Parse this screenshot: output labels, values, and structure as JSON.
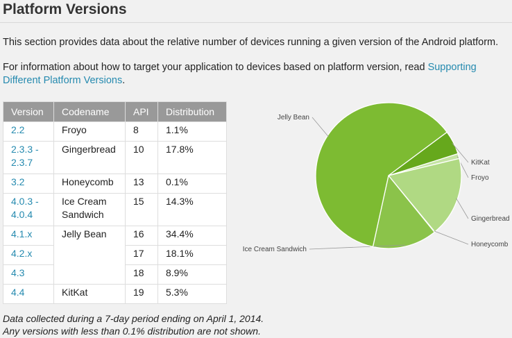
{
  "page": {
    "title": "Platform Versions",
    "intro": "This section provides data about the relative number of devices running a given version of the Android platform.",
    "info_prefix": "For information about how to target your application to devices based on platform version, read ",
    "info_link": "Supporting Different Platform Versions",
    "info_suffix": "."
  },
  "table": {
    "headers": [
      "Version",
      "Codename",
      "API",
      "Distribution"
    ],
    "rows": [
      {
        "version": "2.2",
        "codename": "Froyo",
        "api": "8",
        "distribution": "1.1%"
      },
      {
        "version": "2.3.3 - 2.3.7",
        "codename": "Gingerbread",
        "api": "10",
        "distribution": "17.8%"
      },
      {
        "version": "3.2",
        "codename": "Honeycomb",
        "api": "13",
        "distribution": "0.1%"
      },
      {
        "version": "4.0.3 - 4.0.4",
        "codename": "Ice Cream Sandwich",
        "api": "15",
        "distribution": "14.3%"
      },
      {
        "version": "4.1.x",
        "codename": "Jelly Bean",
        "api": "16",
        "distribution": "34.4%"
      },
      {
        "version": "4.2.x",
        "codename": "",
        "api": "17",
        "distribution": "18.1%"
      },
      {
        "version": "4.3",
        "codename": "",
        "api": "18",
        "distribution": "8.9%"
      },
      {
        "version": "4.4",
        "codename": "KitKat",
        "api": "19",
        "distribution": "5.3%"
      }
    ]
  },
  "notes": {
    "line1": "Data collected during a 7-day period ending on April 1, 2014.",
    "line2": "Any versions with less than 0.1% distribution are not shown."
  },
  "chart_data": {
    "type": "pie",
    "slices": [
      {
        "label": "Froyo",
        "value": 1.1,
        "color": "#c5e4a4"
      },
      {
        "label": "Gingerbread",
        "value": 17.8,
        "color": "#b0d983"
      },
      {
        "label": "Honeycomb",
        "value": 0.1,
        "color": "#9ece6a"
      },
      {
        "label": "Ice Cream Sandwich",
        "value": 14.3,
        "color": "#8bc34a"
      },
      {
        "label": "Jelly Bean",
        "value": 61.4,
        "color": "#7dbb32"
      },
      {
        "label": "KitKat",
        "value": 5.3,
        "color": "#66a81c"
      }
    ]
  }
}
